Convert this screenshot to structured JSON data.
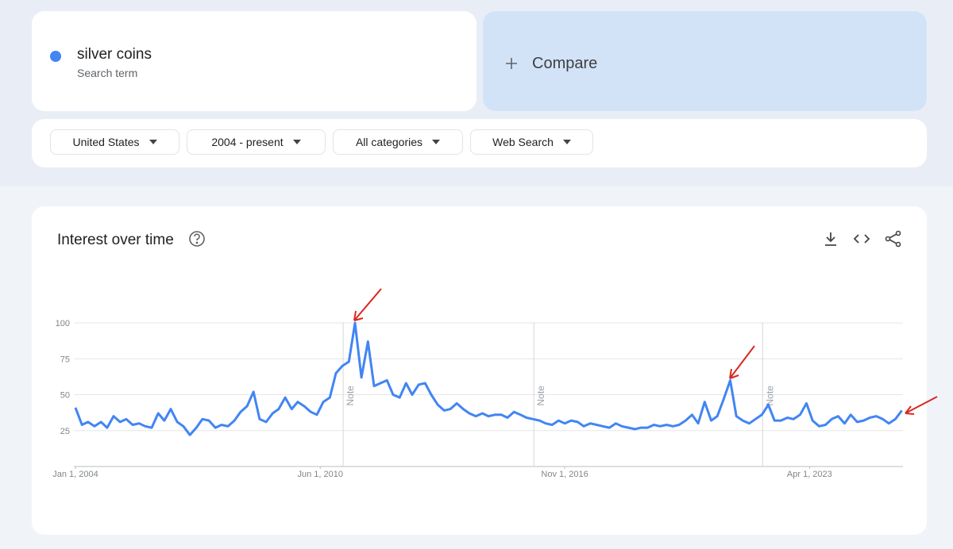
{
  "filters": [
    "United States",
    "2004 - present",
    "All categories",
    "Web Search"
  ],
  "search_subtitle": "Search term",
  "compare": "Compare",
  "chart_data": {
    "type": "line",
    "title": "Interest over time",
    "x": [
      2004,
      2004.17,
      2004.33,
      2004.5,
      2004.67,
      2004.83,
      2005,
      2005.17,
      2005.33,
      2005.5,
      2005.67,
      2005.83,
      2006,
      2006.17,
      2006.33,
      2006.5,
      2006.67,
      2006.83,
      2007,
      2007.17,
      2007.33,
      2007.5,
      2007.67,
      2007.83,
      2008,
      2008.17,
      2008.33,
      2008.5,
      2008.67,
      2008.83,
      2009,
      2009.17,
      2009.33,
      2009.5,
      2009.67,
      2009.83,
      2010,
      2010.17,
      2010.33,
      2010.5,
      2010.67,
      2010.83,
      2011,
      2011.17,
      2011.33,
      2011.5,
      2011.67,
      2011.83,
      2012,
      2012.17,
      2012.33,
      2012.5,
      2012.67,
      2012.83,
      2013,
      2013.17,
      2013.33,
      2013.5,
      2013.67,
      2013.83,
      2014,
      2014.17,
      2014.33,
      2014.5,
      2014.67,
      2014.83,
      2015,
      2015.17,
      2015.33,
      2015.5,
      2015.67,
      2015.83,
      2016,
      2016.17,
      2016.33,
      2016.5,
      2016.67,
      2016.83,
      2017,
      2017.17,
      2017.33,
      2017.5,
      2017.67,
      2017.83,
      2018,
      2018.17,
      2018.33,
      2018.5,
      2018.67,
      2018.83,
      2019,
      2019.17,
      2019.33,
      2019.5,
      2019.67,
      2019.83,
      2020,
      2020.17,
      2020.33,
      2020.5,
      2020.67,
      2020.83,
      2021,
      2021.17,
      2021.33,
      2021.5,
      2021.67,
      2021.83,
      2022,
      2022.17,
      2022.33,
      2022.5,
      2022.67,
      2022.83,
      2023,
      2023.17,
      2023.33,
      2023.5,
      2023.67,
      2023.83,
      2024,
      2024.17,
      2024.33,
      2024.5,
      2024.67,
      2024.83,
      2025,
      2025.17,
      2025.33,
      2025.5,
      2025.67
    ],
    "series": [
      {
        "name": "silver coins",
        "color": "#4285f4",
        "values": [
          41,
          29,
          31,
          28,
          31,
          27,
          35,
          31,
          33,
          29,
          30,
          28,
          27,
          37,
          32,
          40,
          31,
          28,
          22,
          27,
          33,
          32,
          27,
          29,
          28,
          32,
          38,
          42,
          52,
          33,
          31,
          37,
          40,
          48,
          40,
          45,
          42,
          38,
          36,
          45,
          48,
          65,
          70,
          73,
          100,
          62,
          87,
          56,
          58,
          60,
          50,
          48,
          58,
          50,
          57,
          58,
          50,
          43,
          39,
          40,
          44,
          40,
          37,
          35,
          37,
          35,
          36,
          36,
          34,
          38,
          36,
          34,
          33,
          32,
          30,
          29,
          32,
          30,
          32,
          31,
          28,
          30,
          29,
          28,
          27,
          30,
          28,
          27,
          26,
          27,
          27,
          29,
          28,
          29,
          28,
          29,
          32,
          36,
          30,
          45,
          32,
          35,
          47,
          60,
          35,
          32,
          30,
          33,
          36,
          43,
          32,
          32,
          34,
          33,
          36,
          44,
          32,
          28,
          29,
          33,
          35,
          30,
          36,
          31,
          32,
          34,
          35,
          33,
          30,
          33,
          39
        ]
      }
    ],
    "xlim": [
      2004,
      2025.7
    ],
    "ylim": [
      0,
      100
    ],
    "yticks": [
      25,
      50,
      75,
      100
    ],
    "xticks": [
      {
        "value": 2004,
        "label": "Jan 1, 2004"
      },
      {
        "value": 2010.42,
        "label": "Jun 1, 2010"
      },
      {
        "value": 2016.83,
        "label": "Nov 1, 2016"
      },
      {
        "value": 2023.25,
        "label": "Apr 1, 2023"
      }
    ],
    "notes": [
      {
        "x": 2011.02,
        "label": "Note"
      },
      {
        "x": 2016.02,
        "label": "Note"
      },
      {
        "x": 2022.02,
        "label": "Note"
      }
    ],
    "grid": true
  }
}
